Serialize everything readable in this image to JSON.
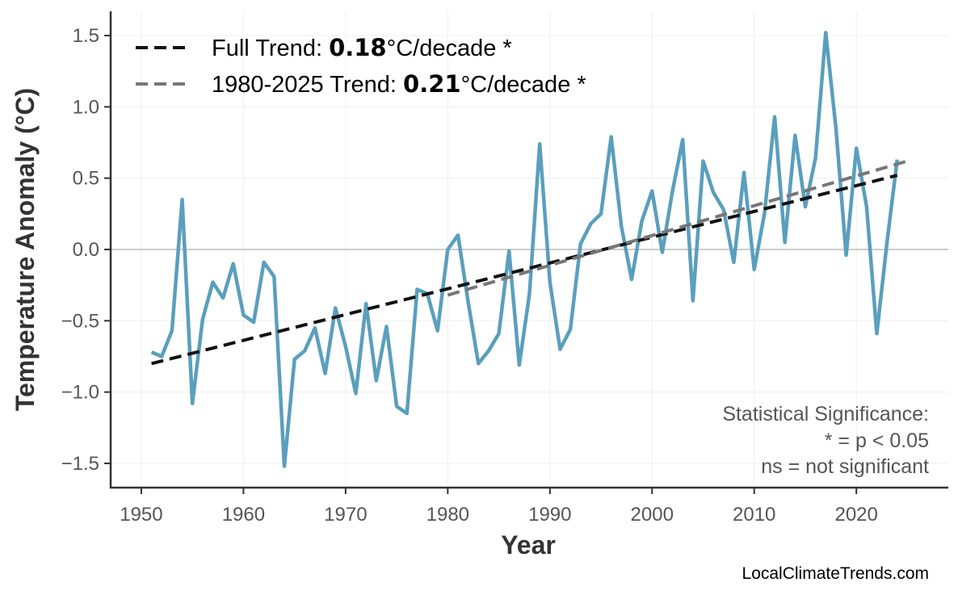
{
  "chart_data": {
    "type": "line",
    "xlabel": "Year",
    "ylabel": "Temperature Anomaly (°C)",
    "xlim": [
      1947,
      2029
    ],
    "ylim": [
      -1.67,
      1.67
    ],
    "x_ticks": [
      1950,
      1960,
      1970,
      1980,
      1990,
      2000,
      2010,
      2020
    ],
    "y_ticks": [
      1.5,
      1.0,
      0.5,
      0.0,
      -0.5,
      -1.0,
      -1.5
    ],
    "y_tick_labels": [
      "1.5",
      "1.0",
      "0.5",
      "0.0",
      "−0.5",
      "−1.0",
      "−1.5"
    ],
    "x_tick_labels": [
      "1950",
      "1960",
      "1970",
      "1980",
      "1990",
      "2000",
      "2010",
      "2020"
    ],
    "grid": true,
    "zero_line": true,
    "series": [
      {
        "color": "#5a9fbd",
        "style": "solid",
        "x": [
          1951,
          1952,
          1953,
          1954,
          1955,
          1956,
          1957,
          1958,
          1959,
          1960,
          1961,
          1962,
          1963,
          1964,
          1965,
          1966,
          1967,
          1968,
          1969,
          1970,
          1971,
          1972,
          1973,
          1974,
          1975,
          1976,
          1977,
          1978,
          1979,
          1980,
          1981,
          1982,
          1983,
          1984,
          1985,
          1986,
          1987,
          1988,
          1989,
          1990,
          1991,
          1992,
          1993,
          1994,
          1995,
          1996,
          1997,
          1998,
          1999,
          2000,
          2001,
          2002,
          2003,
          2004,
          2005,
          2006,
          2007,
          2008,
          2009,
          2010,
          2011,
          2012,
          2013,
          2014,
          2015,
          2016,
          2017,
          2018,
          2019,
          2020,
          2021,
          2022,
          2023,
          2024
        ],
        "values": [
          -0.72,
          -0.75,
          -0.57,
          0.35,
          -1.08,
          -0.49,
          -0.23,
          -0.34,
          -0.1,
          -0.46,
          -0.51,
          -0.09,
          -0.19,
          -1.52,
          -0.77,
          -0.71,
          -0.55,
          -0.87,
          -0.41,
          -0.68,
          -1.01,
          -0.38,
          -0.92,
          -0.54,
          -1.1,
          -1.15,
          -0.28,
          -0.31,
          -0.57,
          0.0,
          0.1,
          -0.37,
          -0.8,
          -0.71,
          -0.59,
          -0.01,
          -0.81,
          -0.31,
          0.74,
          -0.23,
          -0.7,
          -0.56,
          0.04,
          0.18,
          0.25,
          0.79,
          0.16,
          -0.21,
          0.2,
          0.41,
          -0.02,
          0.41,
          0.77,
          -0.36,
          0.62,
          0.4,
          0.28,
          -0.09,
          0.54,
          -0.14,
          0.25,
          0.93,
          0.05,
          0.8,
          0.3,
          0.64,
          1.52,
          0.85,
          -0.04,
          0.71,
          0.3,
          -0.59,
          0.05,
          0.63
        ]
      },
      {
        "name": "Full Trend",
        "color": "#111111",
        "style": "dashed",
        "x": [
          1951,
          2024
        ],
        "values": [
          -0.8,
          0.52
        ]
      },
      {
        "name": "1980-2025 Trend",
        "color": "#777777",
        "style": "dashed",
        "x": [
          1980,
          2025
        ],
        "values": [
          -0.32,
          0.62
        ]
      }
    ],
    "legend": {
      "placement": "top-left",
      "entries": [
        {
          "prefix": "Full Trend: ",
          "value": "0.18",
          "suffix": "°C/decade *",
          "color": "#111111"
        },
        {
          "prefix": "1980-2025 Trend: ",
          "value": "0.21",
          "suffix": "°C/decade *",
          "color": "#777777"
        }
      ]
    },
    "annotations": {
      "significance": [
        "Statistical Significance:",
        "* = p < 0.05",
        "ns = not significant"
      ],
      "credit": "LocalClimateTrends.com"
    }
  }
}
